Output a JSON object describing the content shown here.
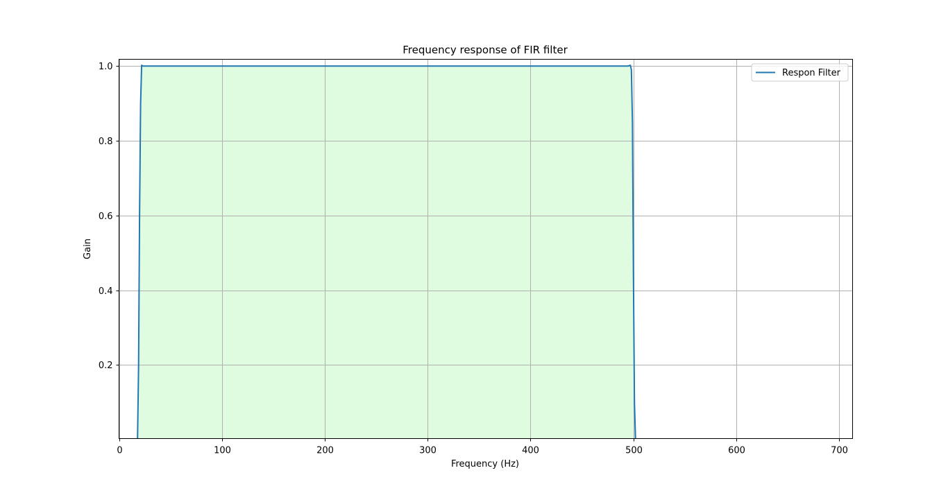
{
  "chart_data": {
    "type": "area",
    "title": "Frequency response of FIR filter",
    "xlabel": "Frequency (Hz)",
    "ylabel": "Gain",
    "xlim": [
      0,
      713
    ],
    "ylim": [
      0.003,
      1.018
    ],
    "xticks": [
      0,
      100,
      200,
      300,
      400,
      500,
      600,
      700
    ],
    "yticks": [
      0.2,
      0.4,
      0.6,
      0.8,
      1.0
    ],
    "ytick_labels": [
      "0.2",
      "0.4",
      "0.6",
      "0.8",
      "1.0"
    ],
    "grid": true,
    "legend": {
      "position": "upper-right",
      "entries": [
        "Respon Filter"
      ]
    },
    "fill_color": "#e0fce0",
    "line_color": "#1f77b4",
    "series": [
      {
        "name": "Respon Filter",
        "x": [
          18,
          19,
          20,
          21,
          22,
          23,
          24,
          26,
          30,
          40,
          100,
          200,
          300,
          400,
          480,
          495,
          497,
          498,
          499,
          500,
          501,
          502
        ],
        "y": [
          0.003,
          0.2,
          0.6,
          0.9,
          1.002,
          1.0,
          1.0,
          1.0,
          1.0,
          1.0,
          1.0,
          1.0,
          1.0,
          1.0,
          1.0,
          1.0,
          1.002,
          0.99,
          0.85,
          0.45,
          0.1,
          0.003
        ]
      }
    ]
  }
}
